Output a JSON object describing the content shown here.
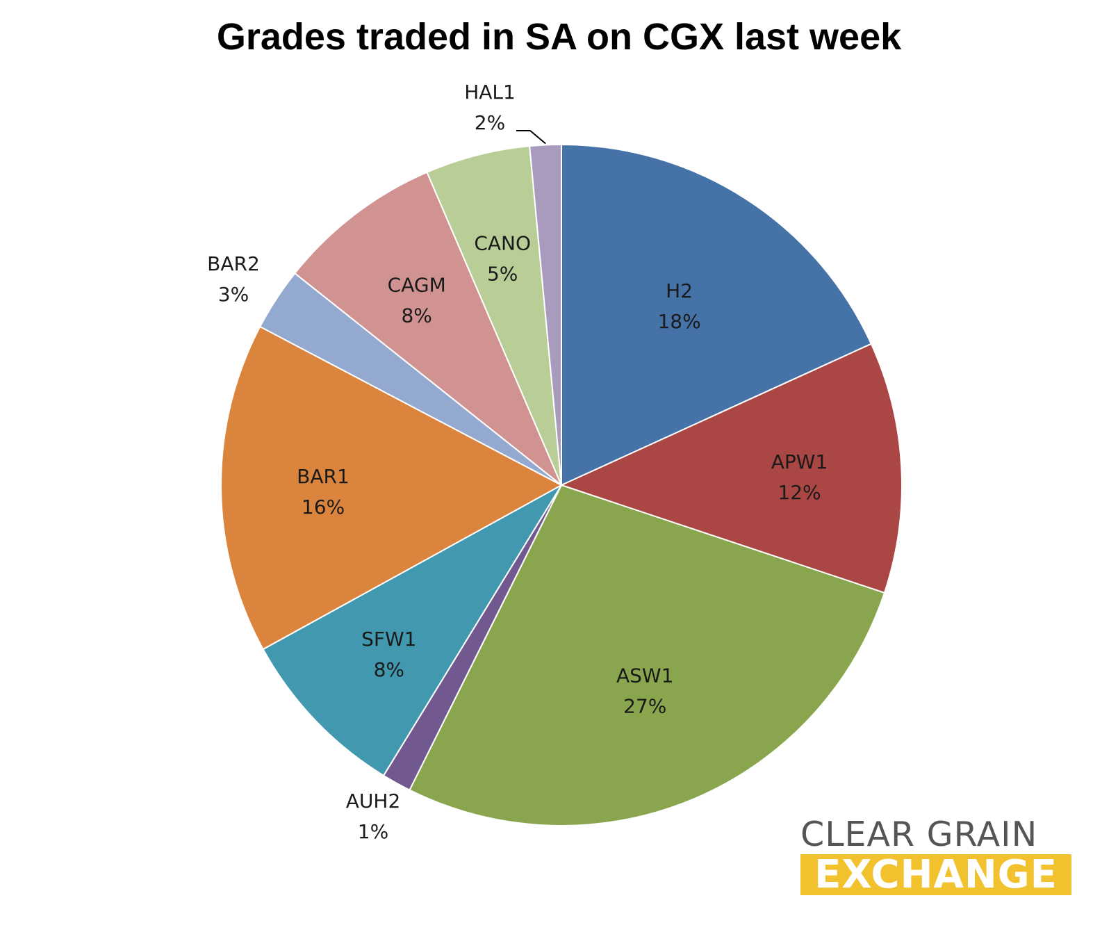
{
  "chart_data": {
    "type": "pie",
    "title": "Grades traded in SA on CGX last week",
    "start_angle_deg": 0,
    "direction": "clockwise",
    "slices": [
      {
        "name": "H2",
        "label": "18%",
        "value": 18.3,
        "color": "#4572a7"
      },
      {
        "name": "APW1",
        "label": "12%",
        "value": 12.0,
        "color": "#aa4643"
      },
      {
        "name": "ASW1",
        "label": "27%",
        "value": 27.4,
        "color": "#89a54e"
      },
      {
        "name": "AUH2",
        "label": "1%",
        "value": 1.4,
        "color": "#71588f"
      },
      {
        "name": "SFW1",
        "label": "8%",
        "value": 8.3,
        "color": "#4198af"
      },
      {
        "name": "BAR1",
        "label": "16%",
        "value": 15.8,
        "color": "#db843d"
      },
      {
        "name": "BAR2",
        "label": "3%",
        "value": 3.0,
        "color": "#93a9cf"
      },
      {
        "name": "CAGM",
        "label": "8%",
        "value": 7.9,
        "color": "#d19392"
      },
      {
        "name": "CANO",
        "label": "5%",
        "value": 5.0,
        "color": "#b9cd96"
      },
      {
        "name": "HAL1",
        "label": "2%",
        "value": 1.5,
        "color": "#a99bbd"
      }
    ]
  },
  "logo": {
    "line1": "CLEAR GRAIN",
    "line2": "EXCHANGE",
    "line1_color": "#555555",
    "line2_color": "#f2c12e"
  }
}
